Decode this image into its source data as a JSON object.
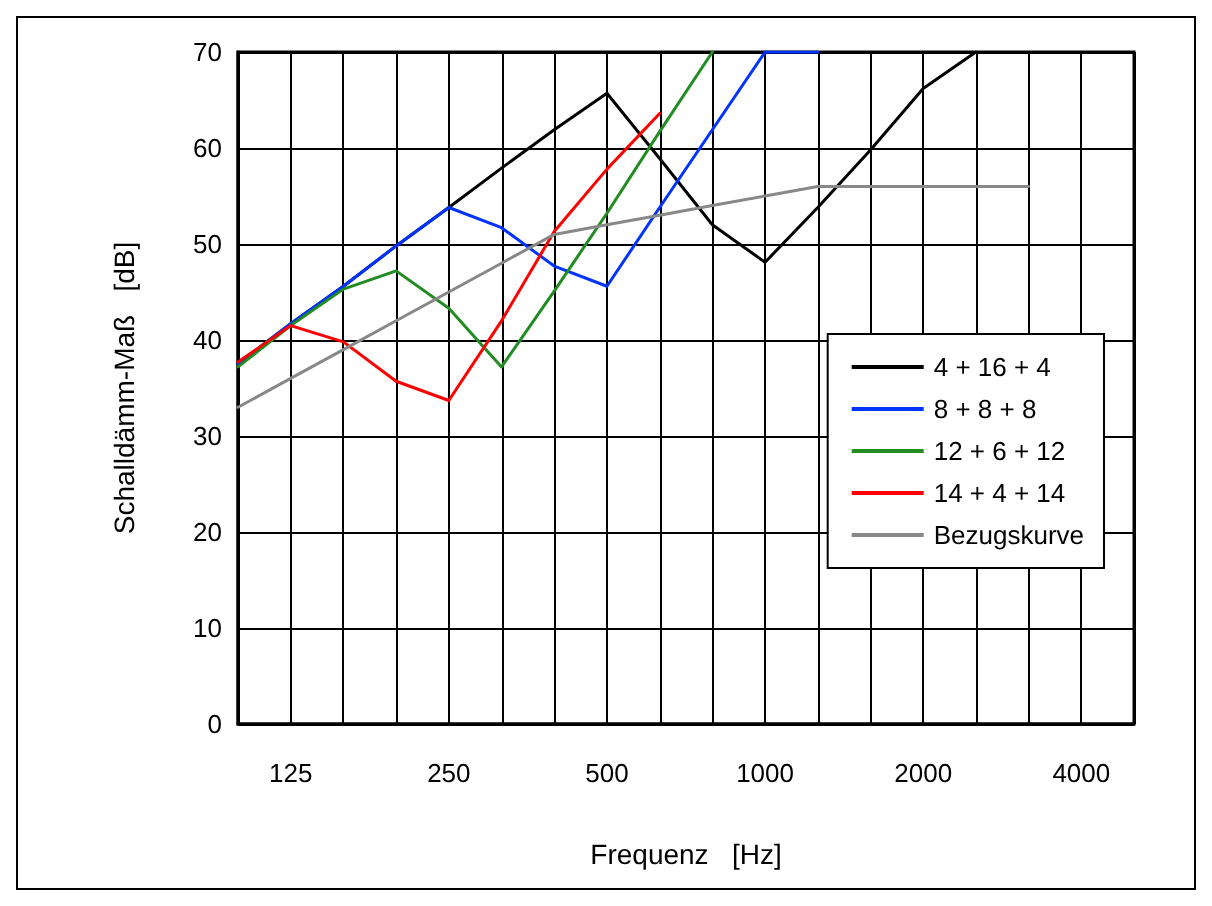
{
  "chart_data": {
    "type": "line",
    "xlabel": "Frequenz   [Hz]",
    "ylabel": "Schalldämm-Maß   [dB]",
    "categories": [
      null,
      "125",
      null,
      null,
      "250",
      null,
      null,
      "500",
      null,
      null,
      "1000",
      null,
      null,
      "2000",
      null,
      null,
      "4000",
      null
    ],
    "series": [
      {
        "name": "4 + 16 + 4",
        "color": "#000000",
        "values": [
          37.5,
          41.7,
          45.6,
          49.8,
          53.8,
          57.9,
          61.9,
          65.7,
          58.9,
          52.0,
          48.1,
          53.8,
          59.8,
          66.2,
          70,
          null,
          null,
          null
        ]
      },
      {
        "name": "8 + 8 + 8",
        "color": "#0033ff",
        "values": [
          37.5,
          41.7,
          45.6,
          49.8,
          53.8,
          51.7,
          47.7,
          45.6,
          53.8,
          61.9,
          70,
          70,
          null,
          null,
          null,
          null,
          null,
          null
        ]
      },
      {
        "name": "12 + 6 + 12",
        "color": "#228b22",
        "values": [
          37.2,
          41.5,
          45.3,
          47.2,
          43.3,
          37.2,
          45.1,
          53.2,
          61.7,
          70,
          null,
          null,
          null,
          null,
          null,
          null,
          null,
          null
        ]
      },
      {
        "name": "14 + 4 + 14",
        "color": "#ff0000",
        "values": [
          37.7,
          41.5,
          39.8,
          35.7,
          33.7,
          42.0,
          51.3,
          57.8,
          63.6,
          null,
          null,
          null,
          null,
          null,
          null,
          null,
          null,
          null
        ]
      },
      {
        "name": "Bezugskurve",
        "color": "#888888",
        "values": [
          33,
          36,
          39,
          42,
          45,
          48,
          51,
          52,
          53,
          54,
          55,
          56,
          56,
          56,
          56,
          56,
          null,
          null
        ]
      }
    ],
    "ylim": [
      0,
      70
    ],
    "yticks": [
      0,
      10,
      20,
      30,
      40,
      50,
      60,
      70
    ],
    "grid": true,
    "legend": "right",
    "marker": "none",
    "line_style": "solid"
  }
}
